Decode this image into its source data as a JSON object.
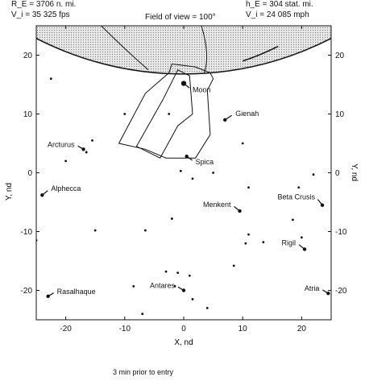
{
  "header": {
    "re": "R_E = 3706 n. mi.",
    "vi_left": "V_i = 35 325 fps",
    "fov": "Field of view = 100°",
    "he": "h_E = 304 stat. mi.",
    "vi_right": "V_i = 24 085 mph"
  },
  "caption": "3 min prior to entry",
  "chart_data": {
    "type": "scatter",
    "xlabel": "X, nd",
    "ylabel": "Y, nd",
    "xlim": [
      -25,
      25
    ],
    "ylim": [
      -25,
      25
    ],
    "x_ticks": [
      -20,
      -10,
      0,
      10,
      20
    ],
    "y_ticks": [
      20,
      10,
      0,
      -10,
      -20
    ],
    "grid": false,
    "earth_limb_y_at_center": 16.8,
    "named_stars": [
      {
        "name": "Moon",
        "x": 0,
        "y": 15.2
      },
      {
        "name": "Gienah",
        "x": 7,
        "y": 9
      },
      {
        "name": "Arcturus",
        "x": -17,
        "y": 4
      },
      {
        "name": "Spica",
        "x": 0.5,
        "y": 2.8
      },
      {
        "name": "Alphecca",
        "x": -24,
        "y": -3.8
      },
      {
        "name": "Menkent",
        "x": 9.5,
        "y": -6.5
      },
      {
        "name": "Beta Crusis",
        "x": 23.5,
        "y": -5.5
      },
      {
        "name": "Rigil",
        "x": 20.5,
        "y": -13
      },
      {
        "name": "Antares",
        "x": 0,
        "y": -20
      },
      {
        "name": "Atria",
        "x": 24.5,
        "y": -20.5
      },
      {
        "name": "Rasalhaque",
        "x": -23,
        "y": -21
      }
    ],
    "other_stars": [
      {
        "x": -22.5,
        "y": 16
      },
      {
        "x": -10,
        "y": 10
      },
      {
        "x": -2.5,
        "y": 10
      },
      {
        "x": -15.5,
        "y": 5.5
      },
      {
        "x": -16.5,
        "y": 3.5
      },
      {
        "x": -20,
        "y": 2
      },
      {
        "x": -0.5,
        "y": 0.3
      },
      {
        "x": 1.5,
        "y": -1
      },
      {
        "x": 5,
        "y": 0
      },
      {
        "x": 10,
        "y": 5
      },
      {
        "x": 11,
        "y": -2.5
      },
      {
        "x": 19.5,
        "y": -2.5
      },
      {
        "x": 22,
        "y": -0.3
      },
      {
        "x": -2,
        "y": -7.8
      },
      {
        "x": 18.5,
        "y": -8
      },
      {
        "x": -15,
        "y": -9.8
      },
      {
        "x": -6.5,
        "y": -9.8
      },
      {
        "x": 11,
        "y": -10.5
      },
      {
        "x": 10.5,
        "y": -12
      },
      {
        "x": 13.5,
        "y": -11.8
      },
      {
        "x": 20,
        "y": -11
      },
      {
        "x": 8.5,
        "y": -15.8
      },
      {
        "x": -3,
        "y": -16.8
      },
      {
        "x": -1,
        "y": -17
      },
      {
        "x": 1,
        "y": -17.5
      },
      {
        "x": -8.5,
        "y": -19.3
      },
      {
        "x": -1.5,
        "y": -19.3
      },
      {
        "x": 1.5,
        "y": -21.5
      },
      {
        "x": 4,
        "y": -23
      },
      {
        "x": -7,
        "y": -24
      },
      {
        "x": -25,
        "y": -11.5
      }
    ],
    "fov_outline": [
      [
        -11,
        5
      ],
      [
        -6.5,
        13.5
      ],
      [
        -2.5,
        17
      ],
      [
        -2,
        18.5
      ],
      [
        2,
        18
      ],
      [
        4.5,
        17
      ],
      [
        5,
        16
      ],
      [
        4,
        14
      ],
      [
        4.5,
        6.5
      ],
      [
        2,
        2.5
      ],
      [
        -3,
        2.5
      ],
      [
        -6.5,
        4
      ]
    ],
    "fov_inner": [
      [
        -8,
        4.5
      ],
      [
        -3.5,
        12.5
      ],
      [
        -1,
        17.5
      ],
      [
        1,
        16.5
      ],
      [
        1.5,
        10
      ],
      [
        -1,
        8
      ],
      [
        -4,
        2.5
      ]
    ]
  }
}
